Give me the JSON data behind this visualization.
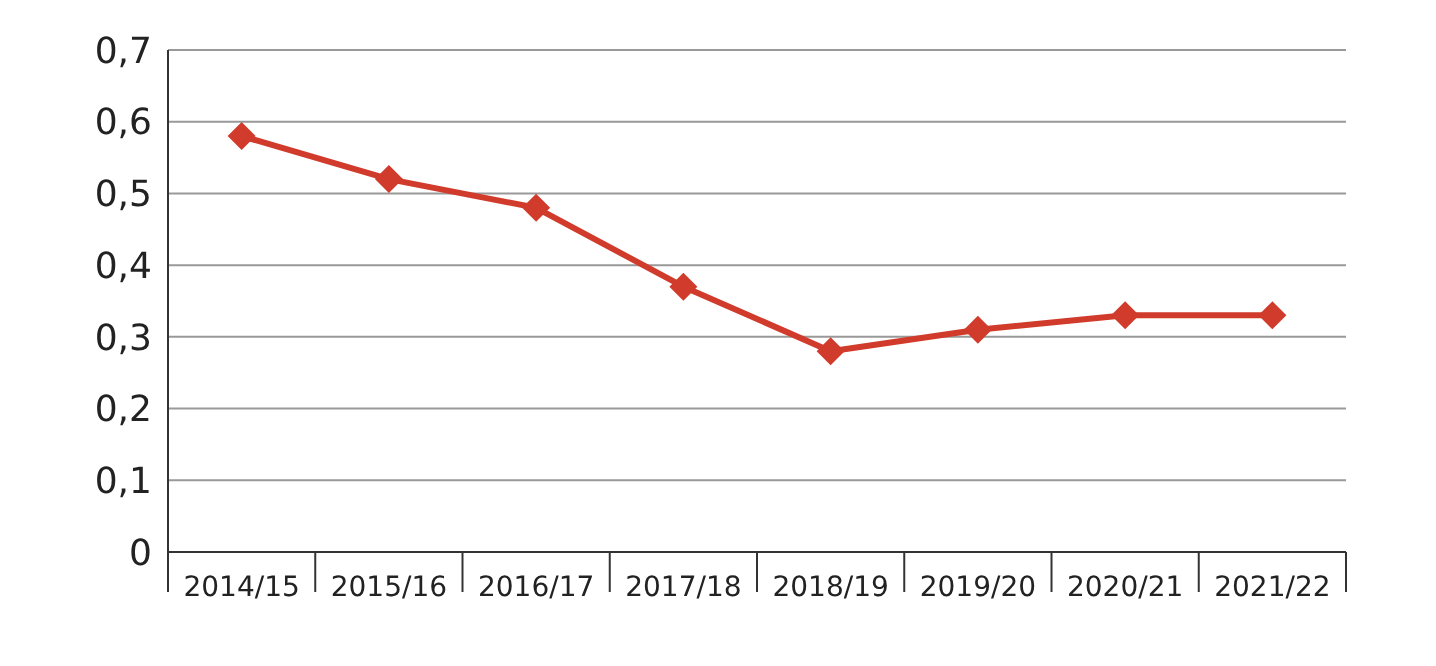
{
  "chart_data": {
    "type": "line",
    "categories": [
      "2014/15",
      "2015/16",
      "2016/17",
      "2017/18",
      "2018/19",
      "2019/20",
      "2020/21",
      "2021/22"
    ],
    "series": [
      {
        "color": "#d13b2b",
        "values": [
          0.58,
          0.52,
          0.48,
          0.37,
          0.28,
          0.31,
          0.33,
          0.33
        ]
      }
    ],
    "ylim": [
      0,
      0.7
    ],
    "yticks": [
      {
        "value": 0,
        "label": "0"
      },
      {
        "value": 0.1,
        "label": "0,1"
      },
      {
        "value": 0.2,
        "label": "0,2"
      },
      {
        "value": 0.3,
        "label": "0,3"
      },
      {
        "value": 0.4,
        "label": "0,4"
      },
      {
        "value": 0.5,
        "label": "0,5"
      },
      {
        "value": 0.6,
        "label": "0,6"
      },
      {
        "value": 0.7,
        "label": "0,7"
      }
    ],
    "grid": "y",
    "marker": "diamond",
    "line_style": "solid",
    "legend": false
  }
}
